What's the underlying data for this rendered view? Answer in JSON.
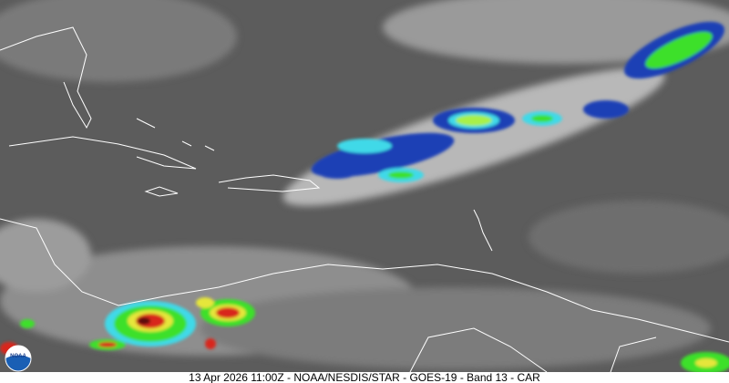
{
  "caption": "13 Apr 2026 11:00Z - NOAA/NESDIS/STAR - GOES-19 - Band 13 - CAR",
  "logo_text": "NOAA",
  "colors": {
    "background": "#5a5a5a",
    "cloud_light": "#cfcfcf",
    "cold_blue": "#1d3fb5",
    "cyan": "#3fd9e8",
    "green": "#3de02a",
    "yellow": "#e6e63a",
    "red": "#d8281e",
    "dark_red": "#5a0a0a",
    "coastline": "#ffffff"
  }
}
